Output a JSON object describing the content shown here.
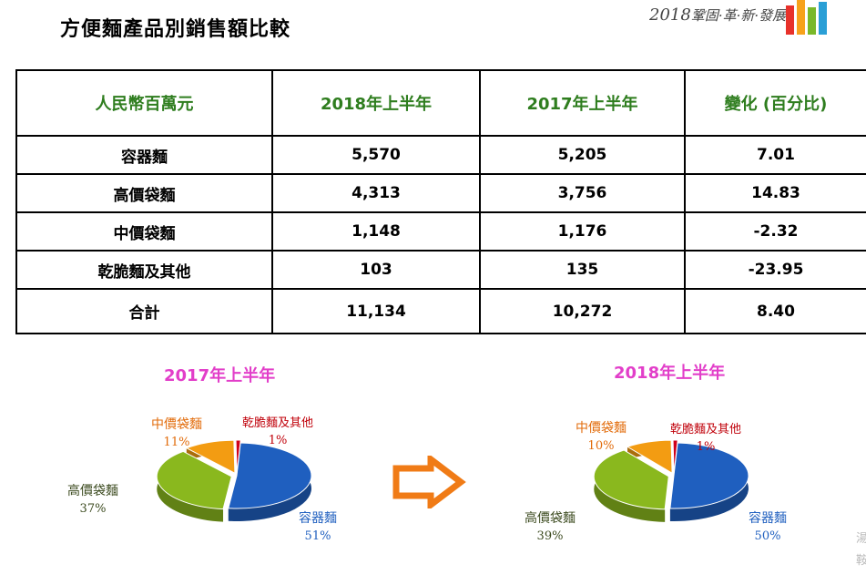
{
  "page": {
    "title": "方便麵產品別銷售額比較",
    "logo_text_year": "2018",
    "logo_text_words": "鞏固·革·新·發展",
    "edge_chars": [
      "湯",
      "鞍"
    ]
  },
  "table": {
    "headers": [
      "人民幣百萬元",
      "2018年上半年",
      "2017年上半年",
      "變化 (百分比)"
    ],
    "rows": [
      [
        "容器麵",
        "5,570",
        "5,205",
        "7.01"
      ],
      [
        "高價袋麵",
        "4,313",
        "3,756",
        "14.83"
      ],
      [
        "中價袋麵",
        "1,148",
        "1,176",
        "-2.32"
      ],
      [
        "乾脆麵及其他",
        "103",
        "135",
        "-23.95"
      ],
      [
        "合計",
        "11,134",
        "10,272",
        "8.40"
      ]
    ]
  },
  "colors": {
    "header_green": "#2e7d1e",
    "title_magenta": "#e23ec9",
    "slice_blue": "#1f5fbf",
    "slice_green": "#8ab81e",
    "slice_orange": "#f39c12",
    "slice_red": "#d0021b",
    "arrow_orange": "#f07b16",
    "logo_bars": [
      "#e8312a",
      "#f7a21b",
      "#7ab829",
      "#2a9fd6"
    ]
  },
  "chart_data": [
    {
      "type": "pie",
      "title": "2017年上半年",
      "slices": [
        {
          "label": "容器麵",
          "value": 51,
          "pct_label": "51%"
        },
        {
          "label": "高價袋麵",
          "value": 37,
          "pct_label": "37%"
        },
        {
          "label": "中價袋麵",
          "value": 11,
          "pct_label": "11%"
        },
        {
          "label": "乾脆麵及其他",
          "value": 1,
          "pct_label": "1%"
        }
      ]
    },
    {
      "type": "pie",
      "title": "2018年上半年",
      "slices": [
        {
          "label": "容器麵",
          "value": 50,
          "pct_label": "50%"
        },
        {
          "label": "高價袋麵",
          "value": 39,
          "pct_label": "39%"
        },
        {
          "label": "中價袋麵",
          "value": 10,
          "pct_label": "10%"
        },
        {
          "label": "乾脆麵及其他",
          "value": 1,
          "pct_label": "1%"
        }
      ]
    }
  ]
}
